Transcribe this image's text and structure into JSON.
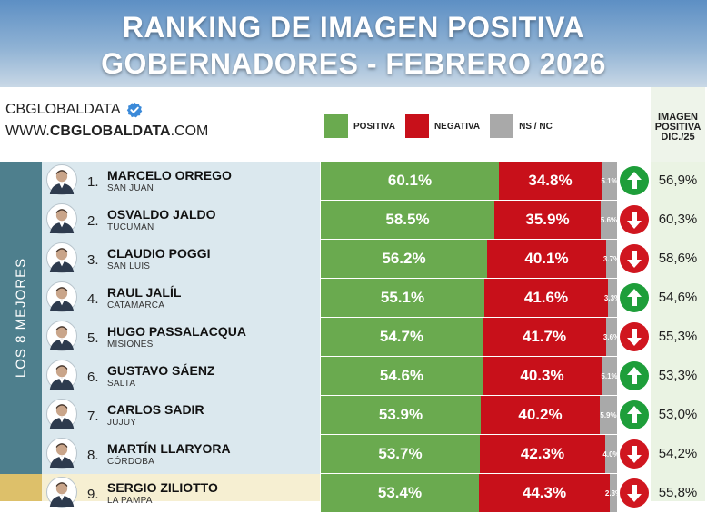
{
  "title": {
    "line1": "RANKING DE IMAGEN POSITIVA",
    "line2": "GOBERNADORES - FEBRERO 2026"
  },
  "brand": {
    "name": "CBGLOBALDATA",
    "url_prefix": "WWW.",
    "url_bold": "CBGLOBALDATA",
    "url_suffix": ".COM"
  },
  "legend": [
    {
      "label": "POSITIVA",
      "color": "#6aaa4f"
    },
    {
      "label": "NEGATIVA",
      "color": "#c8101a"
    },
    {
      "label": "NS / NC",
      "color": "#a9a9a9"
    }
  ],
  "prev_header": {
    "line1": "IMAGEN",
    "line2": "POSITIVA",
    "line3": "DIC./25"
  },
  "side_label": "LOS 8 MEJORES",
  "colors": {
    "positive": "#6aaa4f",
    "negative": "#c8101a",
    "nsnc": "#a9a9a9",
    "trend_up": "#1e9e3a",
    "trend_down": "#d0161f",
    "side_top": "#4e7f8d",
    "side_bottom": "#ddc06a"
  },
  "chart_data": {
    "type": "bar",
    "stacked": true,
    "orientation": "horizontal",
    "title": "RANKING DE IMAGEN POSITIVA GOBERNADORES - FEBRERO 2026",
    "series": [
      {
        "name": "POSITIVA",
        "values": [
          60.1,
          58.5,
          56.2,
          55.1,
          54.7,
          54.6,
          53.9,
          53.7,
          53.4
        ]
      },
      {
        "name": "NEGATIVA",
        "values": [
          34.8,
          35.9,
          40.1,
          41.6,
          41.7,
          40.3,
          40.2,
          42.3,
          44.3
        ]
      },
      {
        "name": "NS / NC",
        "values": [
          5.1,
          5.6,
          3.7,
          3.3,
          3.6,
          5.1,
          5.9,
          4.0,
          2.3
        ]
      }
    ],
    "rows": [
      {
        "rank": "1.",
        "name": "MARCELO ORREGO",
        "province": "SAN JUAN",
        "pos": 60.1,
        "pos_label": "60.1%",
        "neg": 34.8,
        "neg_label": "34.8%",
        "nsnc": 5.1,
        "nsnc_label": "5.1%",
        "trend": "up",
        "prev": "56,9%"
      },
      {
        "rank": "2.",
        "name": "OSVALDO JALDO",
        "province": "TUCUMÁN",
        "pos": 58.5,
        "pos_label": "58.5%",
        "neg": 35.9,
        "neg_label": "35.9%",
        "nsnc": 5.6,
        "nsnc_label": "5.6%",
        "trend": "down",
        "prev": "60,3%"
      },
      {
        "rank": "3.",
        "name": "CLAUDIO POGGI",
        "province": "SAN LUIS",
        "pos": 56.2,
        "pos_label": "56.2%",
        "neg": 40.1,
        "neg_label": "40.1%",
        "nsnc": 3.7,
        "nsnc_label": "3.7%",
        "trend": "down",
        "prev": "58,6%"
      },
      {
        "rank": "4.",
        "name": "RAUL JALÍL",
        "province": "CATAMARCA",
        "pos": 55.1,
        "pos_label": "55.1%",
        "neg": 41.6,
        "neg_label": "41.6%",
        "nsnc": 3.3,
        "nsnc_label": "3.3%",
        "trend": "up",
        "prev": "54,6%"
      },
      {
        "rank": "5.",
        "name": "HUGO PASSALACQUA",
        "province": "MISIONES",
        "pos": 54.7,
        "pos_label": "54.7%",
        "neg": 41.7,
        "neg_label": "41.7%",
        "nsnc": 3.6,
        "nsnc_label": "3.6%",
        "trend": "down",
        "prev": "55,3%"
      },
      {
        "rank": "6.",
        "name": "GUSTAVO SÁENZ",
        "province": "SALTA",
        "pos": 54.6,
        "pos_label": "54.6%",
        "neg": 40.3,
        "neg_label": "40.3%",
        "nsnc": 5.1,
        "nsnc_label": "5.1%",
        "trend": "up",
        "prev": "53,3%"
      },
      {
        "rank": "7.",
        "name": "CARLOS SADIR",
        "province": "JUJUY",
        "pos": 53.9,
        "pos_label": "53.9%",
        "neg": 40.2,
        "neg_label": "40.2%",
        "nsnc": 5.9,
        "nsnc_label": "5.9%",
        "trend": "up",
        "prev": "53,0%"
      },
      {
        "rank": "8.",
        "name": "MARTÍN LLARYORA",
        "province": "CÓRDOBA",
        "pos": 53.7,
        "pos_label": "53.7%",
        "neg": 42.3,
        "neg_label": "42.3%",
        "nsnc": 4.0,
        "nsnc_label": "4.0%",
        "trend": "down",
        "prev": "54,2%"
      },
      {
        "rank": "9.",
        "name": "SERGIO ZILIOTTO",
        "province": "LA PAMPA",
        "pos": 53.4,
        "pos_label": "53.4%",
        "neg": 44.3,
        "neg_label": "44.3%",
        "nsnc": 2.3,
        "nsnc_label": "2.3%",
        "trend": "down",
        "prev": "55,8%"
      }
    ],
    "xlim": [
      0,
      100
    ],
    "legend_position": "top"
  }
}
